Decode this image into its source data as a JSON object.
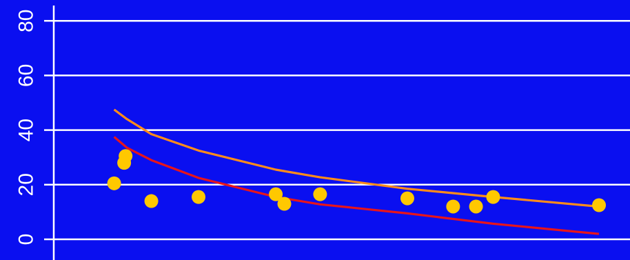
{
  "colors": {
    "background": "#0a0ff0",
    "grid": "#ffffff",
    "axis": "#ffffff",
    "points": "#ffc800",
    "line_upper": "#ff8c1a",
    "line_lower": "#e8151a"
  },
  "chart_data": {
    "type": "scatter",
    "title": "",
    "xlabel": "",
    "ylabel": "",
    "ylim": [
      -5,
      88
    ],
    "xlim": [
      0,
      21.5
    ],
    "x_tick_labels": [],
    "y_ticks": [
      0,
      20,
      40,
      60,
      80
    ],
    "y_tick_labels": [
      "0",
      "20",
      "40",
      "60",
      "80"
    ],
    "grid": "horizontal",
    "legend": "none",
    "points": [
      {
        "x": 2.4,
        "y": 20.5
      },
      {
        "x": 2.8,
        "y": 30.5
      },
      {
        "x": 2.75,
        "y": 28.0
      },
      {
        "x": 3.7,
        "y": 14.0
      },
      {
        "x": 5.35,
        "y": 15.5
      },
      {
        "x": 8.05,
        "y": 16.5
      },
      {
        "x": 8.35,
        "y": 13.0
      },
      {
        "x": 9.6,
        "y": 16.5
      },
      {
        "x": 12.65,
        "y": 15.0
      },
      {
        "x": 14.25,
        "y": 12.0
      },
      {
        "x": 15.05,
        "y": 12.0
      },
      {
        "x": 15.65,
        "y": 15.5
      },
      {
        "x": 19.35,
        "y": 12.5
      }
    ],
    "series": [
      {
        "points": [
          [
            2.4,
            47.5
          ],
          [
            2.85,
            44.0
          ],
          [
            3.7,
            38.5
          ],
          [
            5.35,
            32.5
          ],
          [
            8.05,
            25.5
          ],
          [
            9.6,
            22.7
          ],
          [
            12.65,
            18.5
          ],
          [
            15.65,
            15.5
          ],
          [
            19.35,
            12.0
          ]
        ]
      },
      {
        "points": [
          [
            2.4,
            37.5
          ],
          [
            2.85,
            33.5
          ],
          [
            3.7,
            29.0
          ],
          [
            5.35,
            22.5
          ],
          [
            8.05,
            15.5
          ],
          [
            9.6,
            12.8
          ],
          [
            12.65,
            9.5
          ],
          [
            15.65,
            5.7
          ],
          [
            19.35,
            2.0
          ]
        ]
      }
    ]
  }
}
